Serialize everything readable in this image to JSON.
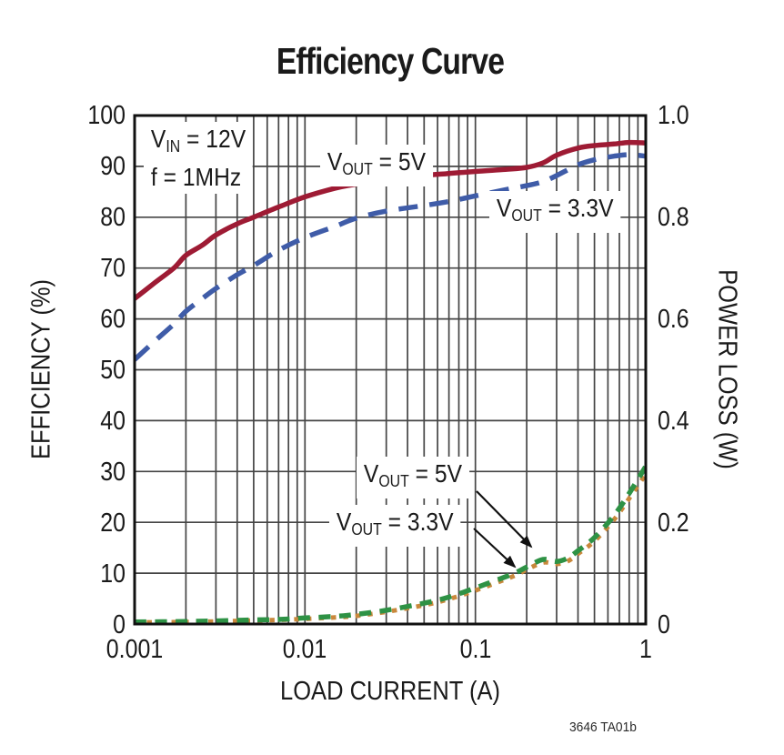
{
  "title": "Efficiency Curve",
  "footnote": "3646 TA01b",
  "annotations": {
    "conditions": {
      "line1_v": "V",
      "line1_sub": "IN",
      "line1_rest": " = 12V",
      "line2": "f = 1MHz"
    },
    "eff_5v": {
      "v": "V",
      "sub": "OUT",
      "rest": " = 5V"
    },
    "eff_3v3": {
      "v": "V",
      "sub": "OUT",
      "rest": " = 3.3V"
    },
    "loss_5v": {
      "v": "V",
      "sub": "OUT",
      "rest": " = 5V"
    },
    "loss_3v3": {
      "v": "V",
      "sub": "OUT",
      "rest": " = 3.3V"
    }
  },
  "chart_data": {
    "type": "line",
    "title": "Efficiency Curve",
    "xlabel": "LOAD CURRENT (A)",
    "ylabel_left": "EFFICIENCY (%)",
    "ylabel_right": "POWER LOSS (W)",
    "x_scale": "log",
    "x_range": [
      0.001,
      1
    ],
    "y_left_range": [
      0,
      100
    ],
    "y_right_range": [
      0,
      1.0
    ],
    "grid": true,
    "grid_color": "#454545",
    "frame_color": "#111111",
    "x_ticks": [
      "0.001",
      "0.01",
      "0.1",
      "1"
    ],
    "y_left_ticks": [
      "100",
      "90",
      "80",
      "70",
      "60",
      "50",
      "40",
      "30",
      "20",
      "10",
      "0"
    ],
    "y_right_ticks": [
      "1.0",
      "0.8",
      "0.6",
      "0.4",
      "0.2",
      "0"
    ],
    "series": [
      {
        "name": "Power loss VOUT = 5V",
        "axis": "right",
        "color": "#c9883c",
        "style": "dot",
        "width": 5,
        "x": [
          0.001,
          0.002,
          0.003,
          0.005,
          0.007,
          0.01,
          0.015,
          0.02,
          0.03,
          0.05,
          0.07,
          0.1,
          0.13,
          0.17,
          0.2,
          0.25,
          0.3,
          0.35,
          0.4,
          0.5,
          0.65,
          0.8,
          1.0
        ],
        "y": [
          0.003,
          0.004,
          0.005,
          0.007,
          0.008,
          0.01,
          0.013,
          0.016,
          0.024,
          0.037,
          0.049,
          0.066,
          0.08,
          0.095,
          0.107,
          0.121,
          0.118,
          0.124,
          0.138,
          0.163,
          0.205,
          0.247,
          0.295
        ]
      },
      {
        "name": "Power loss VOUT = 3.3V",
        "axis": "right",
        "color": "#2e9245",
        "style": "dash",
        "width": 5.5,
        "x": [
          0.001,
          0.002,
          0.003,
          0.005,
          0.007,
          0.01,
          0.015,
          0.02,
          0.03,
          0.05,
          0.07,
          0.1,
          0.13,
          0.17,
          0.2,
          0.25,
          0.3,
          0.35,
          0.4,
          0.5,
          0.65,
          0.8,
          1.0
        ],
        "y": [
          0.004,
          0.005,
          0.006,
          0.008,
          0.009,
          0.012,
          0.015,
          0.019,
          0.027,
          0.041,
          0.053,
          0.071,
          0.085,
          0.1,
          0.112,
          0.127,
          0.123,
          0.13,
          0.144,
          0.17,
          0.213,
          0.257,
          0.31
        ]
      },
      {
        "name": "Efficiency VOUT = 3.3V",
        "axis": "left",
        "color": "#3f5ca8",
        "style": "long-dash",
        "width": 5.5,
        "x": [
          0.001,
          0.0013,
          0.0017,
          0.002,
          0.0025,
          0.003,
          0.004,
          0.005,
          0.007,
          0.01,
          0.015,
          0.02,
          0.03,
          0.05,
          0.07,
          0.1,
          0.15,
          0.2,
          0.25,
          0.3,
          0.4,
          0.5,
          0.65,
          0.8,
          1.0
        ],
        "y": [
          52,
          55.5,
          59,
          61.5,
          64,
          66,
          68.7,
          70.5,
          73.5,
          76,
          78.2,
          79.8,
          81.2,
          82.3,
          83.1,
          84.2,
          85.4,
          86.2,
          87,
          88.2,
          90.3,
          91.3,
          92,
          92.3,
          92
        ]
      },
      {
        "name": "Efficiency VOUT = 5V",
        "axis": "left",
        "color": "#9e1b34",
        "style": "solid",
        "width": 5.5,
        "x": [
          0.001,
          0.0013,
          0.0017,
          0.002,
          0.0025,
          0.003,
          0.004,
          0.005,
          0.007,
          0.01,
          0.015,
          0.02,
          0.03,
          0.05,
          0.07,
          0.1,
          0.15,
          0.2,
          0.25,
          0.3,
          0.4,
          0.5,
          0.65,
          0.8,
          1.0
        ],
        "y": [
          64,
          67,
          70,
          72.5,
          74.5,
          76.5,
          78.7,
          80,
          82,
          84,
          85.7,
          86.5,
          87.4,
          88.2,
          88.6,
          89,
          89.4,
          89.8,
          90.7,
          92.2,
          93.6,
          94.1,
          94.4,
          94.7,
          94.6
        ]
      }
    ]
  }
}
